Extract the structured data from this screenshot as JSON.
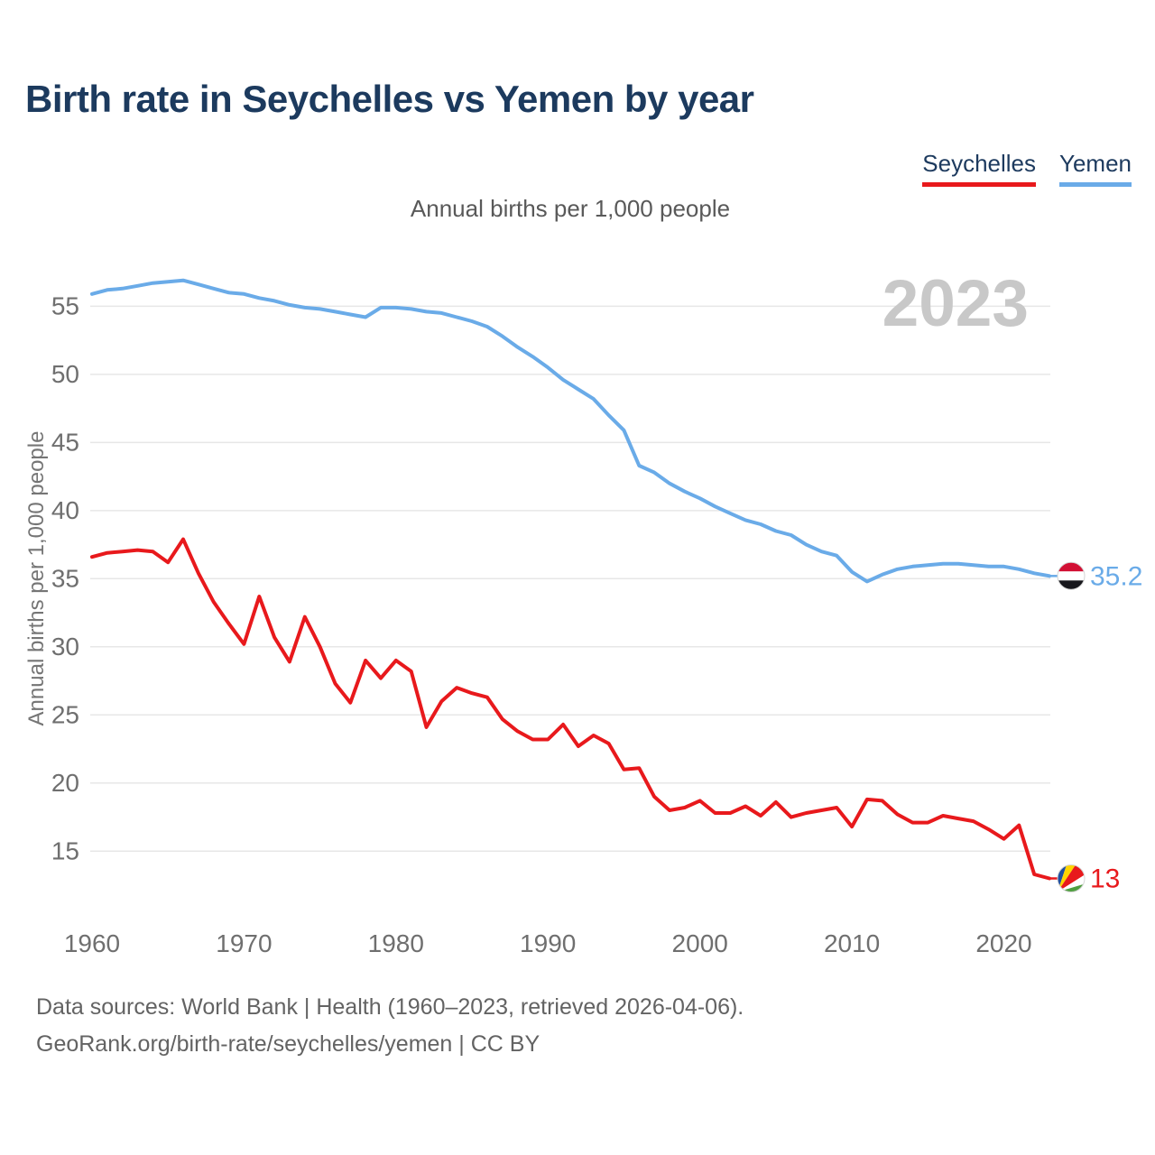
{
  "header": {
    "title": "Birth rate in Seychelles vs Yemen by year",
    "subtitle": "Annual births per 1,000 people"
  },
  "legend": [
    {
      "label": "Seychelles",
      "color": "#e8191c"
    },
    {
      "label": "Yemen",
      "color": "#6aabe8"
    }
  ],
  "watermark": "2023",
  "footer": {
    "line1": "Data sources: World Bank | Health (1960–2023, retrieved 2026-04-06).",
    "line2": "GeoRank.org/birth-rate/seychelles/yemen | CC BY"
  },
  "chart_data": {
    "type": "line",
    "title": "Birth rate in Seychelles vs Yemen by year",
    "subtitle": "Annual births per 1,000 people",
    "xlabel": "",
    "ylabel": "Annual births per 1,000 people",
    "x_range": [
      1960,
      2023
    ],
    "ylim": [
      12,
      58
    ],
    "x_ticks": [
      1960,
      1970,
      1980,
      1990,
      2000,
      2010,
      2020
    ],
    "y_ticks": [
      55,
      50,
      45,
      40,
      35,
      30,
      25,
      20,
      15
    ],
    "grid": "horizontal",
    "legend_position": "top-right",
    "x": [
      1960,
      1961,
      1962,
      1963,
      1964,
      1965,
      1966,
      1967,
      1968,
      1969,
      1970,
      1971,
      1972,
      1973,
      1974,
      1975,
      1976,
      1977,
      1978,
      1979,
      1980,
      1981,
      1982,
      1983,
      1984,
      1985,
      1986,
      1987,
      1988,
      1989,
      1990,
      1991,
      1992,
      1993,
      1994,
      1995,
      1996,
      1997,
      1998,
      1999,
      2000,
      2001,
      2002,
      2003,
      2004,
      2005,
      2006,
      2007,
      2008,
      2009,
      2010,
      2011,
      2012,
      2013,
      2014,
      2015,
      2016,
      2017,
      2018,
      2019,
      2020,
      2021,
      2022,
      2023
    ],
    "series": [
      {
        "name": "Yemen",
        "color": "#6aabe8",
        "flag": "yemen",
        "end_label": "35.2",
        "end_value": 35.2,
        "values": [
          55.9,
          56.2,
          56.3,
          56.5,
          56.7,
          56.8,
          56.9,
          56.6,
          56.3,
          56.0,
          55.9,
          55.6,
          55.4,
          55.1,
          54.9,
          54.8,
          54.6,
          54.4,
          54.2,
          54.9,
          54.9,
          54.8,
          54.6,
          54.5,
          54.2,
          53.9,
          53.5,
          52.8,
          52.0,
          51.3,
          50.5,
          49.6,
          48.9,
          48.2,
          47.0,
          45.9,
          43.3,
          42.8,
          42.0,
          41.4,
          40.9,
          40.3,
          39.8,
          39.3,
          39.0,
          38.5,
          38.2,
          37.5,
          37.0,
          36.7,
          35.5,
          34.8,
          35.3,
          35.7,
          35.9,
          36.0,
          36.1,
          36.1,
          36.0,
          35.9,
          35.9,
          35.7,
          35.4,
          35.2
        ]
      },
      {
        "name": "Seychelles",
        "color": "#e8191c",
        "flag": "seychelles",
        "end_label": "13",
        "end_value": 13.0,
        "values": [
          36.6,
          36.9,
          37.0,
          37.1,
          37.0,
          36.2,
          37.9,
          35.4,
          33.3,
          31.7,
          30.2,
          33.7,
          30.7,
          28.9,
          32.2,
          30.0,
          27.3,
          25.9,
          29.0,
          27.7,
          29.0,
          28.2,
          24.1,
          26.0,
          27.0,
          26.6,
          26.3,
          24.7,
          23.8,
          23.2,
          23.2,
          24.3,
          22.7,
          23.5,
          22.9,
          21.0,
          21.1,
          19.0,
          18.0,
          18.2,
          18.7,
          17.8,
          17.8,
          18.3,
          17.6,
          18.6,
          17.5,
          17.8,
          18.0,
          18.2,
          16.8,
          18.8,
          18.7,
          17.7,
          17.1,
          17.1,
          17.6,
          17.4,
          17.2,
          16.6,
          15.9,
          16.9,
          13.3,
          13.0
        ]
      }
    ],
    "flag_colors": {
      "yemen": [
        "#d21034",
        "#ffffff",
        "#17171c"
      ],
      "seychelles": [
        "#1e4fa0",
        "#ffd500",
        "#e8191c",
        "#ffffff",
        "#4f9f3f"
      ]
    },
    "watermark_year": "2023"
  }
}
